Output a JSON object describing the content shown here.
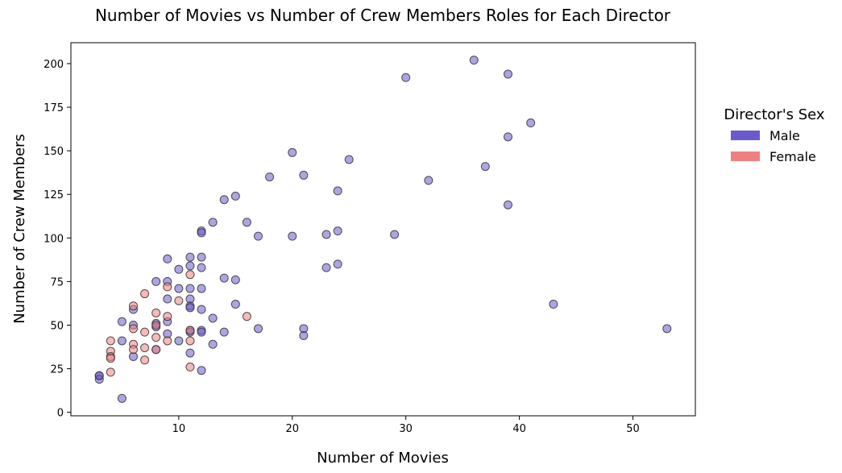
{
  "chart_data": {
    "type": "scatter",
    "title": "Number of Movies vs Number of Crew Members Roles for Each Director",
    "xlabel": "Number of Movies",
    "ylabel": "Number of Crew Members",
    "xlim": [
      0.5,
      55.5
    ],
    "ylim": [
      -2,
      212
    ],
    "xticks": [
      10,
      20,
      30,
      40,
      50
    ],
    "yticks": [
      0,
      25,
      50,
      75,
      100,
      125,
      150,
      175,
      200
    ],
    "grid": false,
    "legend": {
      "title": "Director's Sex",
      "placement": "right-outside",
      "entries": [
        {
          "label": "Male",
          "color": "#6a5acd"
        },
        {
          "label": "Female",
          "color": "#f08080"
        }
      ]
    },
    "colors": {
      "Male": "#6a5acd",
      "Female": "#f08080"
    },
    "series": [
      {
        "name": "Male",
        "points": [
          [
            3,
            21
          ],
          [
            3,
            19
          ],
          [
            3,
            21
          ],
          [
            5,
            8
          ],
          [
            5,
            52
          ],
          [
            5,
            41
          ],
          [
            6,
            59
          ],
          [
            6,
            50
          ],
          [
            6,
            32
          ],
          [
            8,
            75
          ],
          [
            8,
            51
          ],
          [
            8,
            49
          ],
          [
            8,
            36
          ],
          [
            9,
            88
          ],
          [
            9,
            75
          ],
          [
            9,
            65
          ],
          [
            9,
            52
          ],
          [
            9,
            45
          ],
          [
            10,
            82
          ],
          [
            10,
            71
          ],
          [
            10,
            41
          ],
          [
            11,
            89
          ],
          [
            11,
            84
          ],
          [
            11,
            71
          ],
          [
            11,
            65
          ],
          [
            11,
            61
          ],
          [
            11,
            60
          ],
          [
            11,
            47
          ],
          [
            11,
            46
          ],
          [
            11,
            34
          ],
          [
            12,
            104
          ],
          [
            12,
            103
          ],
          [
            12,
            89
          ],
          [
            12,
            83
          ],
          [
            12,
            71
          ],
          [
            12,
            59
          ],
          [
            12,
            47
          ],
          [
            12,
            46
          ],
          [
            12,
            24
          ],
          [
            13,
            109
          ],
          [
            13,
            54
          ],
          [
            13,
            39
          ],
          [
            14,
            122
          ],
          [
            14,
            77
          ],
          [
            14,
            46
          ],
          [
            15,
            124
          ],
          [
            15,
            76
          ],
          [
            15,
            62
          ],
          [
            16,
            109
          ],
          [
            17,
            101
          ],
          [
            17,
            48
          ],
          [
            18,
            135
          ],
          [
            20,
            149
          ],
          [
            20,
            101
          ],
          [
            21,
            136
          ],
          [
            21,
            48
          ],
          [
            21,
            44
          ],
          [
            23,
            102
          ],
          [
            23,
            83
          ],
          [
            24,
            127
          ],
          [
            24,
            104
          ],
          [
            24,
            85
          ],
          [
            25,
            145
          ],
          [
            29,
            102
          ],
          [
            30,
            192
          ],
          [
            32,
            133
          ],
          [
            36,
            202
          ],
          [
            37,
            141
          ],
          [
            39,
            194
          ],
          [
            39,
            158
          ],
          [
            39,
            119
          ],
          [
            41,
            166
          ],
          [
            43,
            62
          ],
          [
            53,
            48
          ]
        ]
      },
      {
        "name": "Female",
        "points": [
          [
            4,
            41
          ],
          [
            4,
            35
          ],
          [
            4,
            32
          ],
          [
            4,
            31
          ],
          [
            4,
            23
          ],
          [
            6,
            61
          ],
          [
            6,
            48
          ],
          [
            6,
            39
          ],
          [
            6,
            36
          ],
          [
            7,
            68
          ],
          [
            7,
            46
          ],
          [
            7,
            37
          ],
          [
            7,
            30
          ],
          [
            8,
            57
          ],
          [
            8,
            50
          ],
          [
            8,
            43
          ],
          [
            8,
            36
          ],
          [
            9,
            72
          ],
          [
            9,
            55
          ],
          [
            9,
            41
          ],
          [
            10,
            64
          ],
          [
            11,
            79
          ],
          [
            11,
            47
          ],
          [
            11,
            41
          ],
          [
            11,
            26
          ],
          [
            16,
            55
          ]
        ]
      }
    ]
  }
}
